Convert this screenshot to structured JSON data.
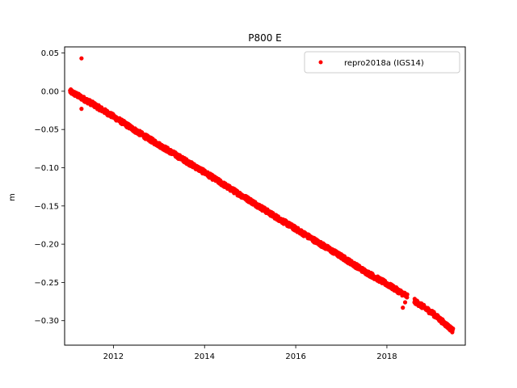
{
  "chart_data": {
    "type": "scatter",
    "title": "P800 E",
    "xlabel": "",
    "ylabel": "m",
    "xlim": [
      2010.93,
      2019.72
    ],
    "ylim": [
      -0.332,
      0.058
    ],
    "xticks": [
      2012,
      2014,
      2016,
      2018
    ],
    "yticks": [
      0.05,
      0.0,
      -0.05,
      -0.1,
      -0.15,
      -0.2,
      -0.25,
      -0.3
    ],
    "ytick_labels": [
      "0.05",
      "0.00",
      "−0.05",
      "−0.10",
      "−0.15",
      "−0.20",
      "−0.25",
      "−0.30"
    ],
    "grid": false,
    "legend": {
      "position": "top-right",
      "entries": [
        "repro2018a (IGS14)"
      ]
    },
    "series": [
      {
        "name": "repro2018a (IGS14)",
        "color": "#ff0000",
        "marker": "circle",
        "trend": {
          "x": [
            2011.05,
            2011.5,
            2012.0,
            2012.5,
            2013.0,
            2013.5,
            2014.0,
            2014.5,
            2015.0,
            2015.5,
            2016.0,
            2016.5,
            2017.0,
            2017.5,
            2018.0,
            2018.5,
            2019.0,
            2019.45
          ],
          "y": [
            0.0,
            -0.015,
            -0.033,
            -0.052,
            -0.07,
            -0.088,
            -0.106,
            -0.125,
            -0.143,
            -0.162,
            -0.18,
            -0.198,
            -0.216,
            -0.235,
            -0.252,
            -0.27,
            -0.29,
            -0.313
          ]
        },
        "outliers": {
          "x": [
            2011.3,
            2011.3,
            2018.35,
            2018.4
          ],
          "y": [
            0.043,
            -0.023,
            -0.283,
            -0.276
          ]
        }
      }
    ]
  }
}
